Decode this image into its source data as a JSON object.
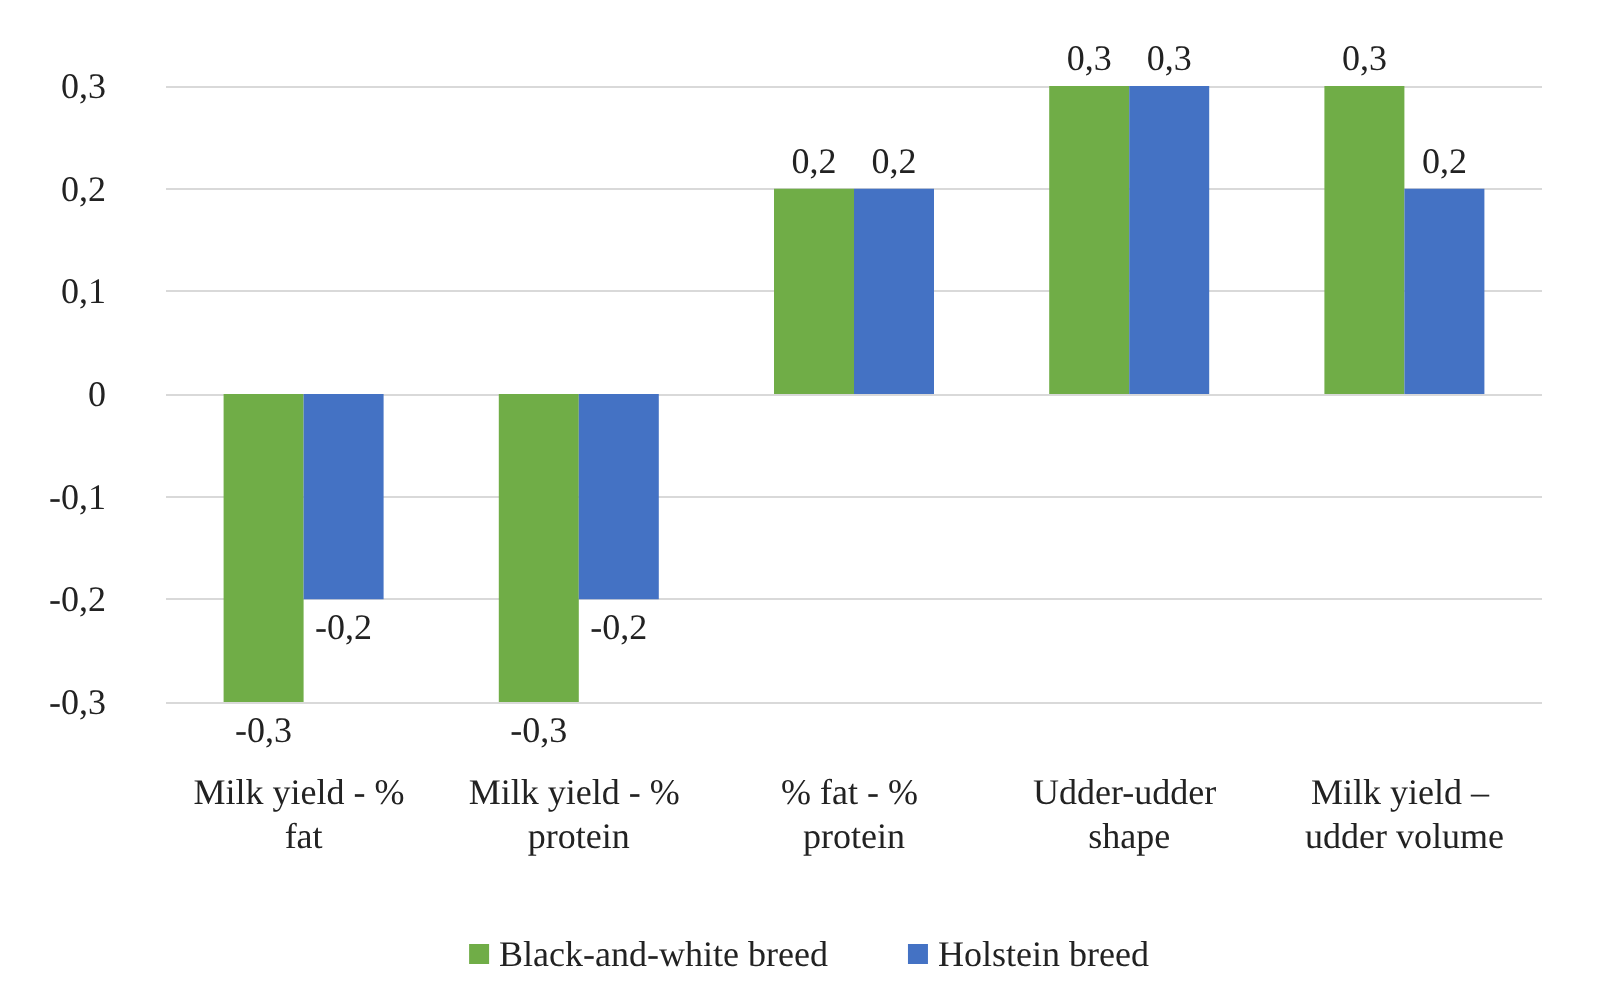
{
  "chart_data": {
    "type": "bar",
    "categories": [
      "Milk yield - % fat",
      "Milk yield - % protein",
      "% fat - % protein",
      "Udder-udder shape",
      "Milk yield – udder volume"
    ],
    "series": [
      {
        "name": "Black-and-white breed",
        "color": "#70ad47",
        "values": [
          -0.3,
          -0.3,
          0.2,
          0.3,
          0.3
        ],
        "value_labels": [
          "-0,3",
          "-0,3",
          "0,2",
          "0,3",
          "0,3"
        ]
      },
      {
        "name": "Holstein breed",
        "color": "#4472c4",
        "values": [
          -0.2,
          -0.2,
          0.2,
          0.3,
          0.2
        ],
        "value_labels": [
          "-0,2",
          "-0,2",
          "0,2",
          "0,3",
          "0,2"
        ]
      }
    ],
    "ylim": [
      -0.3,
      0.3
    ],
    "yticks": [
      {
        "value": -0.3,
        "label": "-0,3"
      },
      {
        "value": -0.2,
        "label": "-0,2"
      },
      {
        "value": -0.1,
        "label": "-0,1"
      },
      {
        "value": 0,
        "label": "0"
      },
      {
        "value": 0.1,
        "label": "0,1"
      },
      {
        "value": 0.2,
        "label": "0,2"
      },
      {
        "value": 0.3,
        "label": "0,3"
      }
    ],
    "grid": "y",
    "legend": "bottom"
  }
}
